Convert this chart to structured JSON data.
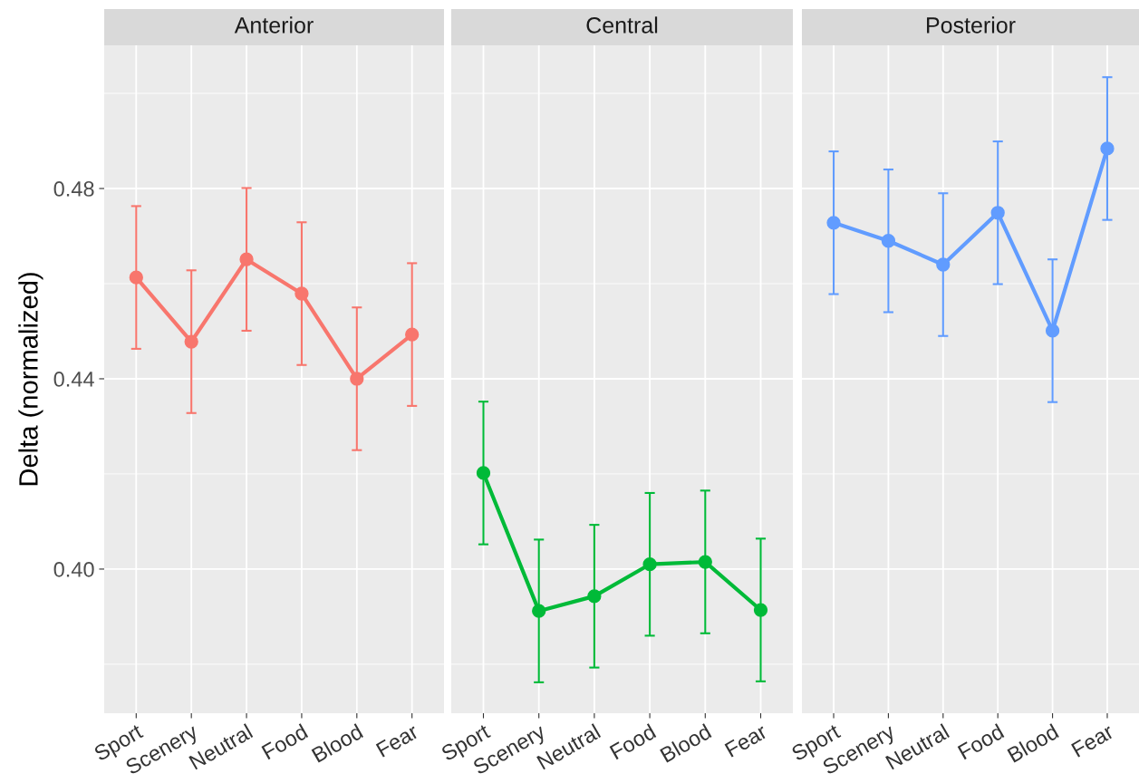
{
  "chart_data": [
    {
      "type": "line",
      "title": "Anterior",
      "ylabel": "Delta (normalized)",
      "categories": [
        "Sport",
        "Scenery",
        "Neutral",
        "Food",
        "Blood",
        "Fear"
      ],
      "series": [
        {
          "color": "#f8766d",
          "values": [
            0.4613,
            0.4478,
            0.4651,
            0.4579,
            0.44,
            0.4493
          ],
          "errors": [
            0.015,
            0.015,
            0.015,
            0.015,
            0.015,
            0.015
          ]
        }
      ],
      "ylim": [
        0.3697,
        0.5101
      ],
      "yticks": [
        {
          "value": 0.4,
          "label": "0.40"
        },
        {
          "value": 0.44,
          "label": "0.44"
        },
        {
          "value": 0.48,
          "label": "0.48"
        }
      ],
      "grid": true,
      "marker": "circle",
      "line_style": "solid"
    },
    {
      "type": "line",
      "title": "Central",
      "categories": [
        "Sport",
        "Scenery",
        "Neutral",
        "Food",
        "Blood",
        "Fear"
      ],
      "series": [
        {
          "color": "#00ba38",
          "values": [
            0.4202,
            0.3912,
            0.3943,
            0.401,
            0.4015,
            0.3914
          ],
          "errors": [
            0.015,
            0.015,
            0.015,
            0.015,
            0.015,
            0.015
          ]
        }
      ],
      "ylim": [
        0.3697,
        0.5101
      ],
      "tick_labels": "x",
      "grid": true,
      "marker": "circle",
      "line_style": "solid"
    },
    {
      "type": "line",
      "title": "Posterior",
      "categories": [
        "Sport",
        "Scenery",
        "Neutral",
        "Food",
        "Blood",
        "Fear"
      ],
      "series": [
        {
          "color": "#619cff",
          "values": [
            0.4728,
            0.469,
            0.464,
            0.4749,
            0.4501,
            0.4884
          ],
          "errors": [
            0.015,
            0.015,
            0.015,
            0.015,
            0.015,
            0.015
          ]
        }
      ],
      "ylim": [
        0.3697,
        0.5101
      ],
      "tick_labels": "x",
      "grid": true,
      "marker": "circle",
      "line_style": "solid"
    }
  ]
}
